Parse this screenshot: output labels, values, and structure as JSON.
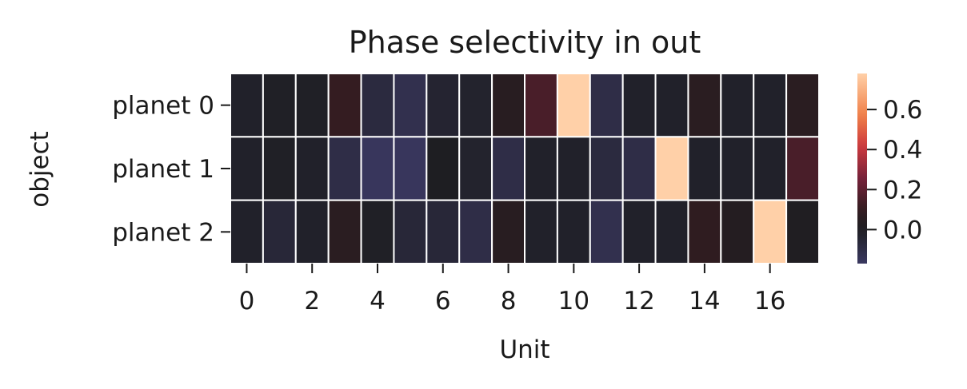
{
  "chart_data": {
    "type": "heatmap",
    "title": "Phase selectivity in out",
    "xlabel": "Unit",
    "ylabel": "object",
    "x_tick_labels": [
      "0",
      "2",
      "4",
      "6",
      "8",
      "10",
      "12",
      "14",
      "16"
    ],
    "x_tick_indices": [
      0,
      2,
      4,
      6,
      8,
      10,
      12,
      14,
      16
    ],
    "rows": [
      "planet 0",
      "planet 1",
      "planet 2"
    ],
    "columns": [
      0,
      1,
      2,
      3,
      4,
      5,
      6,
      7,
      8,
      9,
      10,
      11,
      12,
      13,
      14,
      15,
      16,
      17
    ],
    "values": [
      [
        -0.02,
        -0.01,
        -0.01,
        0.1,
        -0.08,
        -0.12,
        -0.04,
        -0.03,
        0.05,
        0.15,
        0.78,
        -0.1,
        -0.02,
        -0.02,
        0.06,
        -0.02,
        -0.02,
        0.06
      ],
      [
        -0.02,
        -0.01,
        -0.02,
        -0.1,
        -0.16,
        -0.16,
        0.0,
        -0.03,
        -0.1,
        -0.02,
        -0.02,
        -0.08,
        -0.1,
        0.78,
        -0.02,
        -0.02,
        -0.02,
        0.15
      ],
      [
        -0.02,
        -0.06,
        -0.02,
        0.06,
        -0.01,
        -0.06,
        -0.06,
        -0.1,
        0.05,
        -0.02,
        -0.02,
        -0.12,
        -0.02,
        -0.02,
        0.08,
        0.03,
        0.78,
        0.01
      ]
    ],
    "colorbar": {
      "vmin": -0.17,
      "vmax": 0.78,
      "ticks": [
        0.0,
        0.2,
        0.4,
        0.6
      ],
      "tick_labels": [
        "0.0",
        "0.2",
        "0.4",
        "0.6"
      ],
      "colormap": "icefire (dark center)"
    },
    "grid_line_color": "#ffffff"
  }
}
